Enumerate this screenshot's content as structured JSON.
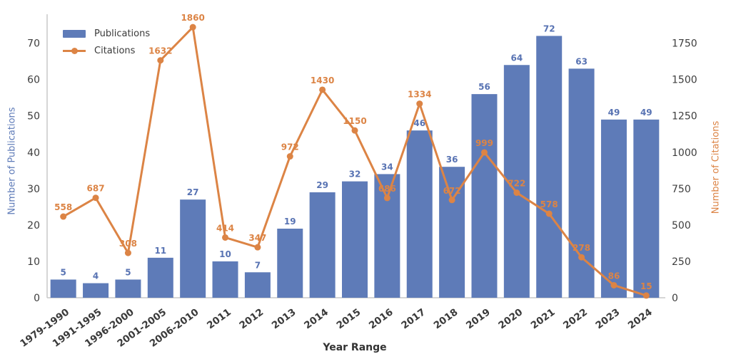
{
  "figure": {
    "xlabel": "Year Range",
    "ylabel_left": "Number of Publications",
    "ylabel_right": "Number of Citations"
  },
  "legend": {
    "items": [
      {
        "label": "Publications",
        "swatch": "bar",
        "color": "#5e7bb8"
      },
      {
        "label": "Citations",
        "swatch": "line",
        "color": "#dc8445"
      }
    ]
  },
  "chart_data": {
    "type": "bar+line combo (dual axis)",
    "title": "",
    "xlabel": "Year Range",
    "ylabel_left": "Number of Publications",
    "ylabel_right": "Number of Citations",
    "categories": [
      "1979-1990",
      "1991-1995",
      "1996-2000",
      "2001-2005",
      "2006-2010",
      "2011",
      "2012",
      "2013",
      "2014",
      "2015",
      "2016",
      "2017",
      "2018",
      "2019",
      "2020",
      "2021",
      "2022",
      "2023",
      "2024"
    ],
    "series": [
      {
        "name": "Publications",
        "type": "bar",
        "axis": "left",
        "color": "#5e7bb8",
        "label_color": "#5873b3",
        "values": [
          5,
          4,
          5,
          11,
          27,
          10,
          7,
          19,
          29,
          32,
          34,
          46,
          36,
          56,
          64,
          72,
          63,
          49,
          49
        ]
      },
      {
        "name": "Citations",
        "type": "line",
        "axis": "right",
        "color": "#dc8445",
        "label_color": "#dc8445",
        "values": [
          558,
          687,
          308,
          1632,
          1860,
          414,
          347,
          972,
          1430,
          1150,
          686,
          1334,
          672,
          999,
          722,
          578,
          278,
          86,
          15
        ]
      }
    ],
    "yticks_left": [
      0,
      10,
      20,
      30,
      40,
      50,
      60,
      70
    ],
    "yticks_right": [
      0,
      250,
      500,
      750,
      1000,
      1250,
      1500,
      1750
    ],
    "ylim_left": [
      0,
      76
    ],
    "ylim_right": [
      0,
      1900
    ],
    "grid": false,
    "legend_position": "upper left",
    "tick_label_color": "#3d3d3d",
    "spine_color": "#c9c9c9"
  }
}
